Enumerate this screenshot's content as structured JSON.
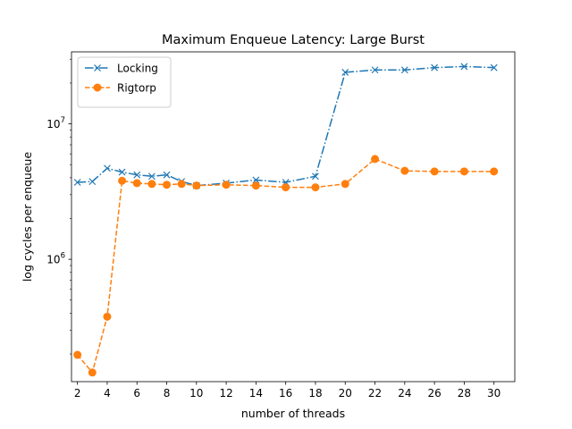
{
  "chart_data": {
    "type": "line",
    "title": "Maximum Enqueue Latency: Large Burst",
    "xlabel": "number of threads",
    "ylabel": "log cycles per enqueue",
    "x_scale": "linear",
    "y_scale": "log",
    "xlim": [
      1.6,
      31.4
    ],
    "ylim": [
      125000,
      34000000
    ],
    "x_ticks": [
      2,
      4,
      6,
      8,
      10,
      12,
      14,
      16,
      18,
      20,
      22,
      24,
      26,
      28,
      30
    ],
    "y_ticks": [
      {
        "value": 1000000,
        "base": "10",
        "exp": "6"
      },
      {
        "value": 10000000,
        "base": "10",
        "exp": "7"
      }
    ],
    "grid": false,
    "legend_position": "top-left",
    "series": [
      {
        "name": "Locking",
        "color": "#1f77b4",
        "line_style": "dash-dot",
        "marker": "x",
        "x": [
          2,
          3,
          4,
          5,
          6,
          7,
          8,
          9,
          10,
          12,
          14,
          16,
          18,
          20,
          22,
          24,
          26,
          28,
          30
        ],
        "y": [
          3700000,
          3750000,
          4700000,
          4400000,
          4200000,
          4100000,
          4200000,
          3750000,
          3500000,
          3650000,
          3850000,
          3700000,
          4100000,
          24000000,
          25000000,
          25000000,
          26000000,
          26500000,
          26000000
        ]
      },
      {
        "name": "Rigtorp",
        "color": "#ff7f0e",
        "line_style": "dashed",
        "marker": "o",
        "x": [
          2,
          3,
          4,
          5,
          6,
          7,
          8,
          9,
          10,
          12,
          14,
          16,
          18,
          20,
          22,
          24,
          26,
          28,
          30
        ],
        "y": [
          197000,
          146000,
          377000,
          3800000,
          3650000,
          3600000,
          3550000,
          3600000,
          3500000,
          3550000,
          3500000,
          3400000,
          3400000,
          3600000,
          5500000,
          4500000,
          4450000,
          4450000,
          4450000
        ]
      }
    ]
  }
}
